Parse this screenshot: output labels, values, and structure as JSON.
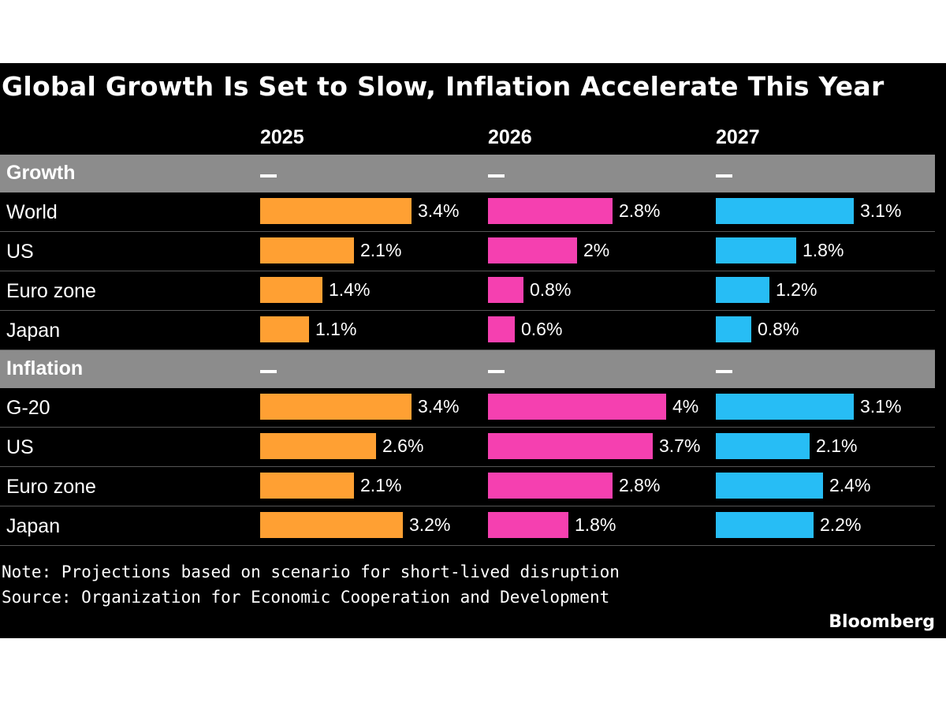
{
  "title": "Global Growth Is Set to Slow, Inflation Accelerate This Year",
  "years": [
    "2025",
    "2026",
    "2027"
  ],
  "section_marker": "—",
  "colors": {
    "2025": "#FFA033",
    "2026": "#F540B0",
    "2027": "#27BDF5",
    "background": "#000000",
    "section_band": "#8C8C8C"
  },
  "chart_data": {
    "type": "table",
    "title": "Global Growth Is Set to Slow, Inflation Accelerate This Year",
    "columns": [
      "2025",
      "2026",
      "2027"
    ],
    "unit": "%",
    "sections": [
      {
        "name": "Growth",
        "rows": [
          {
            "label": "World",
            "values": [
              3.4,
              2.8,
              3.1
            ],
            "labels": [
              "3.4%",
              "2.8%",
              "3.1%"
            ]
          },
          {
            "label": "US",
            "values": [
              2.1,
              2,
              1.8
            ],
            "labels": [
              "2.1%",
              "2%",
              "1.8%"
            ]
          },
          {
            "label": "Euro zone",
            "values": [
              1.4,
              0.8,
              1.2
            ],
            "labels": [
              "1.4%",
              "0.8%",
              "1.2%"
            ]
          },
          {
            "label": "Japan",
            "values": [
              1.1,
              0.6,
              0.8
            ],
            "labels": [
              "1.1%",
              "0.6%",
              "0.8%"
            ]
          }
        ]
      },
      {
        "name": "Inflation",
        "rows": [
          {
            "label": "G-20",
            "values": [
              3.4,
              4,
              3.1
            ],
            "labels": [
              "3.4%",
              "4%",
              "3.1%"
            ]
          },
          {
            "label": "US",
            "values": [
              2.6,
              3.7,
              2.1
            ],
            "labels": [
              "2.6%",
              "3.7%",
              "2.1%"
            ]
          },
          {
            "label": "Euro zone",
            "values": [
              2.1,
              2.8,
              2.4
            ],
            "labels": [
              "2.1%",
              "2.8%",
              "2.4%"
            ]
          },
          {
            "label": "Japan",
            "values": [
              3.2,
              1.8,
              2.2
            ],
            "labels": [
              "3.2%",
              "1.8%",
              "2.2%"
            ]
          }
        ]
      }
    ]
  },
  "note": "Note: Projections based on scenario for short-lived disruption",
  "source": "Source: Organization for Economic Cooperation and Development",
  "brand": "Bloomberg"
}
